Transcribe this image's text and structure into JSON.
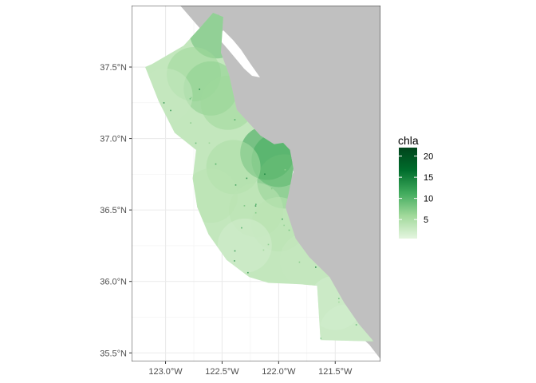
{
  "chart_data": {
    "type": "heatmap",
    "title": "",
    "xlabel": "",
    "ylabel": "",
    "xlim": [
      -123.3,
      -121.1
    ],
    "ylim": [
      35.44,
      37.93
    ],
    "grid": true,
    "x_ticks": [
      {
        "value": -123.0,
        "label": "123.0°W"
      },
      {
        "value": -122.5,
        "label": "122.5°W"
      },
      {
        "value": -122.0,
        "label": "122.0°W"
      },
      {
        "value": -121.5,
        "label": "121.5°W"
      }
    ],
    "y_ticks": [
      {
        "value": 37.5,
        "label": "37.5°N"
      },
      {
        "value": 37.0,
        "label": "37.0°N"
      },
      {
        "value": 36.5,
        "label": "36.5°N"
      },
      {
        "value": 36.0,
        "label": "36.0°N"
      },
      {
        "value": 35.5,
        "label": "35.5°N"
      }
    ],
    "land_color": "#c0c0c0",
    "legend": {
      "title": "chla",
      "placement": "right",
      "range": [
        0.5,
        22
      ],
      "ticks": [
        5,
        10,
        15,
        20
      ],
      "colors": [
        "#e5f5e0",
        "#a1d99b",
        "#41ab5d",
        "#006d2c",
        "#00441b"
      ],
      "low_color": "#e5f5e0",
      "high_color": "#00441b"
    },
    "ocean_region": [
      [
        -122.49,
        37.85
      ],
      [
        -122.51,
        37.6
      ],
      [
        -122.44,
        37.45
      ],
      [
        -122.37,
        37.2
      ],
      [
        -122.16,
        37.02
      ],
      [
        -122.04,
        36.96
      ],
      [
        -121.96,
        36.97
      ],
      [
        -121.9,
        36.92
      ],
      [
        -121.87,
        36.79
      ],
      [
        -121.91,
        36.62
      ],
      [
        -121.94,
        36.52
      ],
      [
        -121.85,
        36.3
      ],
      [
        -121.73,
        36.17
      ],
      [
        -121.55,
        36.03
      ],
      [
        -121.42,
        35.85
      ],
      [
        -121.29,
        35.7
      ],
      [
        -121.16,
        35.58
      ],
      [
        -121.63,
        35.59
      ],
      [
        -121.66,
        35.97
      ],
      [
        -121.8,
        35.98
      ],
      [
        -122.09,
        35.99
      ],
      [
        -122.26,
        36.03
      ],
      [
        -122.46,
        36.15
      ],
      [
        -122.62,
        36.33
      ],
      [
        -122.72,
        36.52
      ],
      [
        -122.76,
        36.72
      ],
      [
        -122.73,
        36.92
      ],
      [
        -122.92,
        37.04
      ],
      [
        -123.06,
        37.26
      ],
      [
        -123.18,
        37.5
      ],
      [
        -123.12,
        37.52
      ],
      [
        -122.84,
        37.65
      ],
      [
        -122.69,
        37.78
      ],
      [
        -122.58,
        37.88
      ]
    ],
    "chla_samples": [
      {
        "lon": -122.55,
        "lat": 37.75,
        "chla": 9
      },
      {
        "lon": -122.75,
        "lat": 37.45,
        "chla": 6
      },
      {
        "lon": -122.6,
        "lat": 37.35,
        "chla": 7
      },
      {
        "lon": -122.45,
        "lat": 37.25,
        "chla": 6
      },
      {
        "lon": -123.0,
        "lat": 37.3,
        "chla": 3
      },
      {
        "lon": -122.1,
        "lat": 36.9,
        "chla": 12
      },
      {
        "lon": -122.0,
        "lat": 36.85,
        "chla": 11
      },
      {
        "lon": -121.95,
        "lat": 36.7,
        "chla": 9
      },
      {
        "lon": -122.4,
        "lat": 36.8,
        "chla": 5
      },
      {
        "lon": -122.6,
        "lat": 36.6,
        "chla": 4
      },
      {
        "lon": -122.2,
        "lat": 36.5,
        "chla": 4
      },
      {
        "lon": -122.0,
        "lat": 36.4,
        "chla": 4
      },
      {
        "lon": -122.3,
        "lat": 36.25,
        "chla": 2
      },
      {
        "lon": -121.75,
        "lat": 36.15,
        "chla": 3
      },
      {
        "lon": -121.5,
        "lat": 35.85,
        "chla": 2
      },
      {
        "lon": -121.4,
        "lat": 35.65,
        "chla": 2
      }
    ]
  }
}
